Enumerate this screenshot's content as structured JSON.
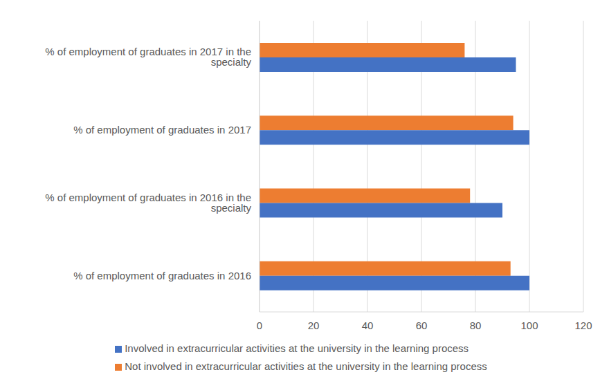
{
  "chart_data": {
    "type": "bar",
    "orientation": "horizontal",
    "categories": [
      "% of employment of graduates in 2017 in the specialty",
      "% of employment of graduates in 2017",
      "% of employment of graduates in 2016 in the specialty",
      "% of employment of graduates in 2016"
    ],
    "series": [
      {
        "name": "Not involved in extracurricular activities at the university in the learning process",
        "color": "#ed7d31",
        "values": [
          76,
          94,
          78,
          93
        ]
      },
      {
        "name": "Involved in extracurricular activities at the university in the learning process",
        "color": "#4472c4",
        "values": [
          95,
          100,
          90,
          100
        ]
      }
    ],
    "xlim": [
      0,
      120
    ],
    "xticks": [
      0,
      20,
      40,
      60,
      80,
      100,
      120
    ],
    "grid": true,
    "legend": "bottom"
  }
}
